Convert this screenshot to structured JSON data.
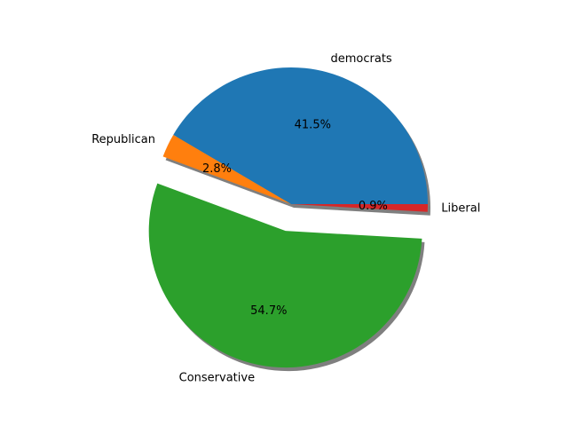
{
  "chart_data": {
    "type": "pie",
    "title": "",
    "start_angle_deg": 0,
    "direction": "counterclockwise",
    "shadow": true,
    "slices": [
      {
        "label": "democrats",
        "value": 41.5,
        "pct_label": "41.5%",
        "color": "#1f77b4",
        "explode": 0
      },
      {
        "label": "Republican",
        "value": 2.8,
        "pct_label": "2.8%",
        "color": "#ff7f0e",
        "explode": 0
      },
      {
        "label": "Conservative",
        "value": 54.7,
        "pct_label": "54.7%",
        "color": "#2ca02c",
        "explode": 0.2
      },
      {
        "label": "Liberal",
        "value": 0.9,
        "pct_label": "0.9%",
        "color": "#d62728",
        "explode": 0
      }
    ]
  }
}
